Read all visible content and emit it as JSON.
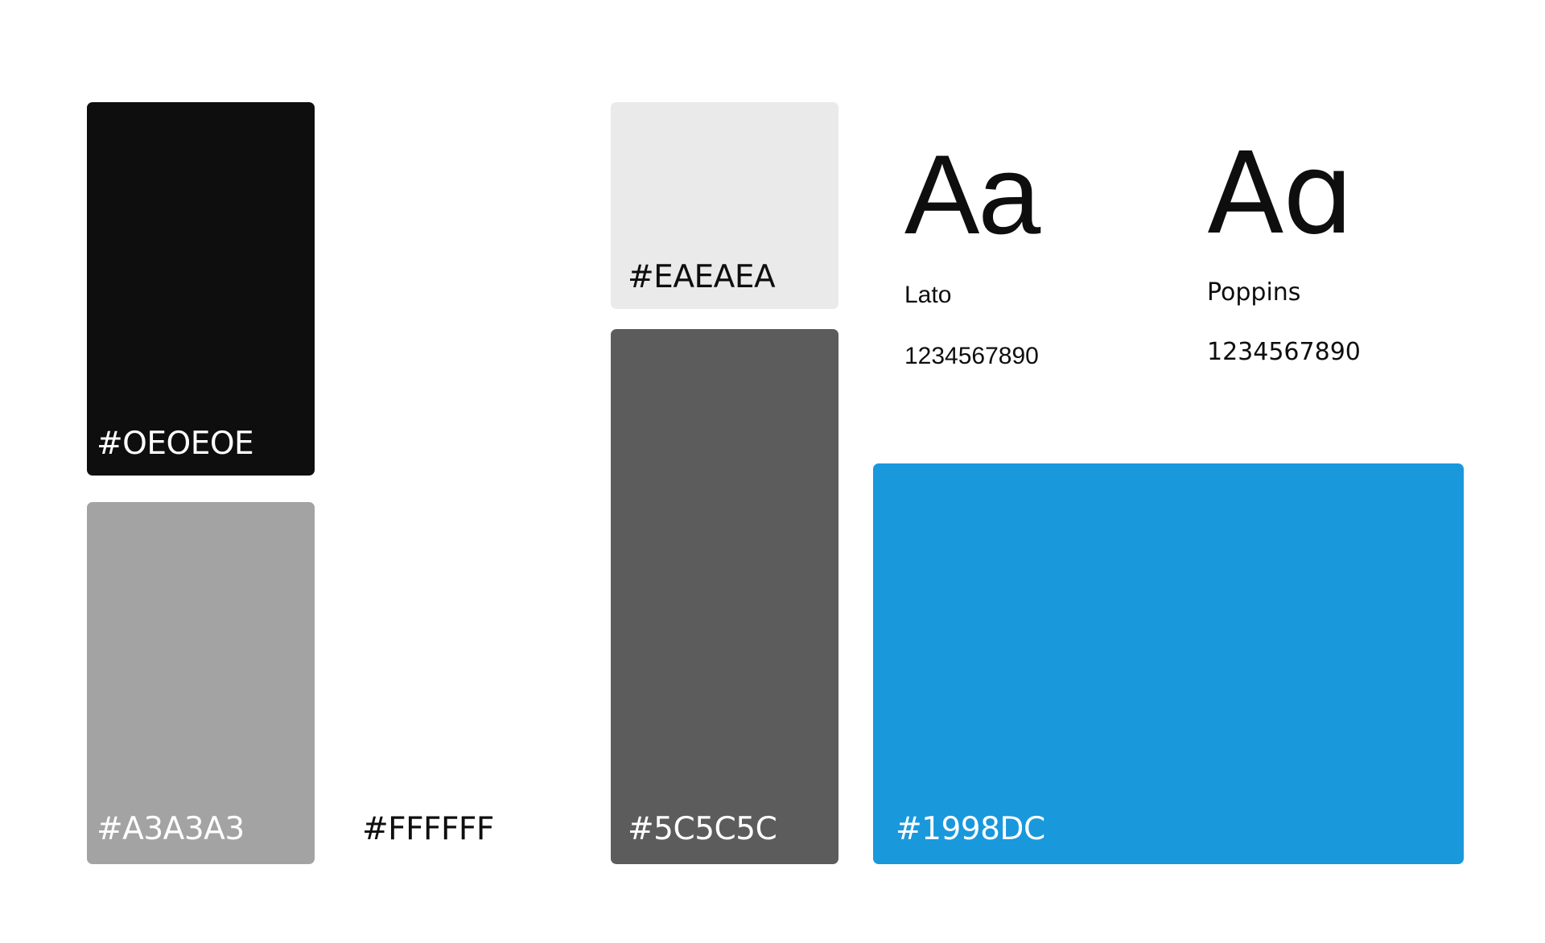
{
  "swatches": {
    "black": {
      "label": "#OEOEOE",
      "color": "#0e0e0e",
      "text_color": "#ffffff"
    },
    "gray": {
      "label": "#A3A3A3",
      "color": "#a3a3a3",
      "text_color": "#ffffff"
    },
    "white": {
      "label": "#FFFFFF",
      "color": "#ffffff",
      "text_color": "#0e0e0e"
    },
    "light": {
      "label": "#EAEAEA",
      "color": "#eaeaea",
      "text_color": "#0e0e0e"
    },
    "dark": {
      "label": "#5C5C5C",
      "color": "#5c5c5c",
      "text_color": "#ffffff"
    },
    "blue": {
      "label": "#1998DC",
      "color": "#1998dc",
      "text_color": "#ffffff"
    }
  },
  "typography": {
    "lato": {
      "glyph": "Aa",
      "name": "Lato",
      "digits": "1234567890"
    },
    "poppins": {
      "glyph": "Aɑ",
      "name": "Poppins",
      "digits": "1234567890"
    }
  }
}
